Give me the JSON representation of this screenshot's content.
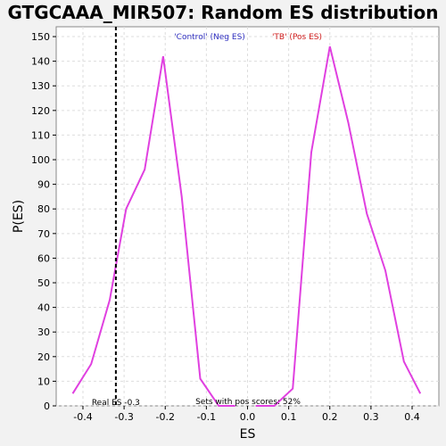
{
  "chart_data": {
    "type": "line",
    "title": "GTGCAAA_MIR507: Random ES distribution",
    "xlabel": "ES",
    "ylabel": "P(ES)",
    "xlim": [
      -0.465,
      0.465
    ],
    "ylim": [
      0,
      154
    ],
    "x_ticks": [
      -0.4,
      -0.3,
      -0.2,
      -0.1,
      0.0,
      0.1,
      0.2,
      0.3,
      0.4
    ],
    "x_tick_labels": [
      "-0.4",
      "-0.3",
      "-0.2",
      "-0.1",
      "0.0",
      "0.1",
      "0.2",
      "0.3",
      "0.4"
    ],
    "y_ticks": [
      0,
      10,
      20,
      30,
      40,
      50,
      60,
      70,
      80,
      90,
      100,
      110,
      120,
      130,
      140,
      150
    ],
    "grid": true,
    "legend_position": "top",
    "series": [
      {
        "name": "'Control' (Neg ES)",
        "color": "#e040e0",
        "x": [
          -0.425,
          -0.38,
          -0.335,
          -0.295,
          -0.25,
          -0.205,
          -0.16,
          -0.115,
          -0.07,
          -0.03
        ],
        "y": [
          5,
          17,
          43,
          80,
          96,
          142,
          85,
          11,
          0,
          0
        ]
      },
      {
        "name": "'TB' (Pos ES)",
        "color": "#e040e0",
        "x": [
          0.02,
          0.065,
          0.11,
          0.155,
          0.2,
          0.245,
          0.29,
          0.335,
          0.38,
          0.42
        ],
        "y": [
          0,
          0,
          7,
          103,
          146,
          115,
          78,
          55,
          18,
          5
        ]
      }
    ],
    "legend_colors": [
      "#3030c0",
      "#d02020"
    ],
    "real_es": -0.32,
    "annotations": {
      "real_es_label": "Real ES -0.3",
      "pos_scores_label": "Sets with pos scores: 52%"
    }
  }
}
